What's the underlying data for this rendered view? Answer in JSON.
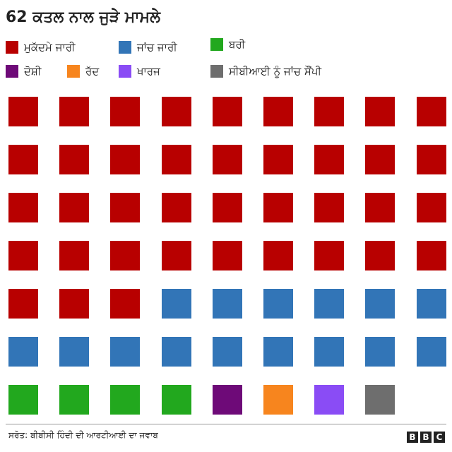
{
  "chart_data": {
    "type": "waffle",
    "title": "62 ਕਤਲ ਨਾਲ ਜੁੜੇ ਮਾਮਲੇ",
    "series": [
      {
        "name": "ਮੁਕੱਦਮੇ ਜਾਰੀ",
        "color": "#b80000",
        "values": [
          39
        ]
      },
      {
        "name": "ਜਾਂਚ ਜਾਰੀ",
        "color": "#3275b7",
        "values": [
          15
        ]
      },
      {
        "name": "ਬਰੀ",
        "color": "#22a81e",
        "values": [
          4
        ]
      },
      {
        "name": "ਦੋਸ਼ੀ",
        "color": "#6e0a78",
        "values": [
          1
        ]
      },
      {
        "name": "ਰੱਦ",
        "color": "#f7851e",
        "values": [
          1
        ]
      },
      {
        "name": "ਖਾਰਜ",
        "color": "#8a4cf5",
        "values": [
          1
        ]
      },
      {
        "name": "ਸੀਬੀਆਈ ਨੂੰ ਜਾਂਚ ਸੌਂਪੀ",
        "color": "#6e6e6e",
        "values": [
          1
        ]
      }
    ],
    "source": "ਸਰੋਤ: ਬੀਬੀਸੀ ਹਿੰਦੀ ਦੀ ਆਰਟੀਆਈ ਦਾ ਜਵਾਬ",
    "logo": [
      "B",
      "B",
      "C"
    ]
  }
}
